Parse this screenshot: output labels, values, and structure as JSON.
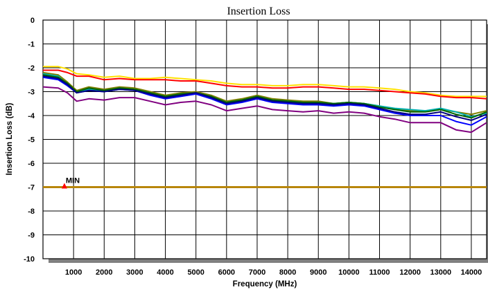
{
  "chart_data": {
    "type": "line",
    "title": "Insertion Loss",
    "xlabel": "Frequency (MHz)",
    "ylabel": "Insertion Loss (dB)",
    "xlim": [
      0,
      14500
    ],
    "ylim": [
      -10,
      0
    ],
    "x_ticks": [
      1000,
      2000,
      3000,
      4000,
      5000,
      6000,
      7000,
      8000,
      9000,
      10000,
      11000,
      12000,
      13000,
      14000
    ],
    "y_ticks": [
      0,
      -1,
      -2,
      -3,
      -4,
      -5,
      -6,
      -7,
      -8,
      -9,
      -10
    ],
    "grid": true,
    "legend": "none",
    "limit_line": {
      "y": -7,
      "color": "#b8860b"
    },
    "marker": {
      "label": "MIN",
      "x": 700,
      "y": -7,
      "color": "#ff0000"
    },
    "series": [
      {
        "color": "#ffe000",
        "x": [
          0,
          500,
          800,
          1100,
          1500,
          2000,
          2500,
          3000,
          3500,
          4000,
          4500,
          5000,
          5500,
          6000,
          6500,
          7000,
          7500,
          8000,
          8500,
          9000,
          9500,
          10000,
          10500,
          11000,
          11500,
          12000,
          12500,
          13000,
          13500,
          14000,
          14500
        ],
        "y": [
          -1.95,
          -1.95,
          -2.05,
          -2.25,
          -2.3,
          -2.4,
          -2.35,
          -2.45,
          -2.45,
          -2.4,
          -2.45,
          -2.5,
          -2.55,
          -2.65,
          -2.7,
          -2.7,
          -2.75,
          -2.75,
          -2.7,
          -2.7,
          -2.75,
          -2.8,
          -2.8,
          -2.85,
          -2.9,
          -3.0,
          -3.05,
          -3.15,
          -3.2,
          -3.2,
          -3.2
        ]
      },
      {
        "color": "#ff0000",
        "x": [
          0,
          500,
          800,
          1100,
          1500,
          2000,
          2500,
          3000,
          3500,
          4000,
          4500,
          5000,
          5500,
          6000,
          6500,
          7000,
          7500,
          8000,
          8500,
          9000,
          9500,
          10000,
          10500,
          11000,
          11500,
          12000,
          12500,
          13000,
          13500,
          14000,
          14500
        ],
        "y": [
          -2.1,
          -2.1,
          -2.2,
          -2.35,
          -2.35,
          -2.5,
          -2.45,
          -2.5,
          -2.5,
          -2.5,
          -2.55,
          -2.55,
          -2.65,
          -2.75,
          -2.8,
          -2.8,
          -2.85,
          -2.85,
          -2.8,
          -2.8,
          -2.85,
          -2.9,
          -2.9,
          -2.95,
          -3.0,
          -3.05,
          -3.1,
          -3.2,
          -3.25,
          -3.25,
          -3.3
        ]
      },
      {
        "color": "#808000",
        "x": [
          0,
          500,
          800,
          1100,
          1500,
          2000,
          2500,
          3000,
          3500,
          4000,
          4500,
          5000,
          5500,
          6000,
          6500,
          7000,
          7500,
          8000,
          8500,
          9000,
          9500,
          10000,
          10500,
          11000,
          11500,
          12000,
          12500,
          13000,
          13500,
          14000,
          14500
        ],
        "y": [
          -2.2,
          -2.3,
          -2.6,
          -2.95,
          -2.8,
          -2.9,
          -2.8,
          -2.85,
          -3.0,
          -3.15,
          -3.05,
          -3.0,
          -3.15,
          -3.4,
          -3.3,
          -3.15,
          -3.3,
          -3.35,
          -3.4,
          -3.4,
          -3.5,
          -3.45,
          -3.5,
          -3.6,
          -3.75,
          -3.8,
          -3.8,
          -3.75,
          -3.85,
          -3.95,
          -3.8
        ]
      },
      {
        "color": "#00b0b0",
        "x": [
          0,
          500,
          800,
          1100,
          1500,
          2000,
          2500,
          3000,
          3500,
          4000,
          4500,
          5000,
          5500,
          6000,
          6500,
          7000,
          7500,
          8000,
          8500,
          9000,
          9500,
          10000,
          10500,
          11000,
          11500,
          12000,
          12500,
          13000,
          13500,
          14000,
          14500
        ],
        "y": [
          -2.25,
          -2.35,
          -2.7,
          -3.0,
          -2.9,
          -2.95,
          -2.85,
          -2.9,
          -3.05,
          -3.2,
          -3.1,
          -3.05,
          -3.2,
          -3.45,
          -3.35,
          -3.2,
          -3.35,
          -3.4,
          -3.45,
          -3.45,
          -3.5,
          -3.45,
          -3.5,
          -3.6,
          -3.7,
          -3.75,
          -3.8,
          -3.7,
          -3.85,
          -4.05,
          -3.9
        ]
      },
      {
        "color": "#0000ff",
        "x": [
          0,
          500,
          800,
          1100,
          1500,
          2000,
          2500,
          3000,
          3500,
          4000,
          4500,
          5000,
          5500,
          6000,
          6500,
          7000,
          7500,
          8000,
          8500,
          9000,
          9500,
          10000,
          10500,
          11000,
          11500,
          12000,
          12500,
          13000,
          13500,
          14000,
          14500
        ],
        "y": [
          -2.4,
          -2.5,
          -2.75,
          -3.05,
          -2.95,
          -3.0,
          -2.9,
          -2.95,
          -3.15,
          -3.3,
          -3.2,
          -3.1,
          -3.3,
          -3.55,
          -3.45,
          -3.3,
          -3.45,
          -3.5,
          -3.55,
          -3.55,
          -3.6,
          -3.55,
          -3.6,
          -3.75,
          -3.9,
          -4.0,
          -4.0,
          -4.0,
          -4.25,
          -4.4,
          -4.05
        ]
      },
      {
        "color": "#800080",
        "x": [
          0,
          500,
          800,
          1100,
          1500,
          2000,
          2500,
          3000,
          3500,
          4000,
          4500,
          5000,
          5500,
          6000,
          6500,
          7000,
          7500,
          8000,
          8500,
          9000,
          9500,
          10000,
          10500,
          11000,
          11500,
          12000,
          12500,
          13000,
          13500,
          14000,
          14500
        ],
        "y": [
          -2.8,
          -2.85,
          -3.05,
          -3.4,
          -3.3,
          -3.35,
          -3.25,
          -3.25,
          -3.4,
          -3.55,
          -3.45,
          -3.4,
          -3.55,
          -3.8,
          -3.7,
          -3.6,
          -3.75,
          -3.8,
          -3.85,
          -3.8,
          -3.9,
          -3.85,
          -3.9,
          -4.05,
          -4.15,
          -4.3,
          -4.3,
          -4.3,
          -4.6,
          -4.7,
          -4.3
        ]
      },
      {
        "color": "#006400",
        "x": [
          0,
          500,
          800,
          1100,
          1500,
          2000,
          2500,
          3000,
          3500,
          4000,
          4500,
          5000,
          5500,
          6000,
          6500,
          7000,
          7500,
          8000,
          8500,
          9000,
          9500,
          10000,
          10500,
          11000,
          11500,
          12000,
          12500,
          13000,
          13500,
          14000,
          14500
        ],
        "y": [
          -2.3,
          -2.4,
          -2.65,
          -3.0,
          -2.85,
          -2.95,
          -2.85,
          -2.9,
          -3.05,
          -3.2,
          -3.1,
          -3.05,
          -3.2,
          -3.45,
          -3.35,
          -3.2,
          -3.35,
          -3.4,
          -3.45,
          -3.45,
          -3.5,
          -3.45,
          -3.5,
          -3.65,
          -3.75,
          -3.85,
          -3.85,
          -3.75,
          -3.95,
          -4.1,
          -3.85
        ]
      },
      {
        "color": "#000080",
        "x": [
          0,
          500,
          800,
          1100,
          1500,
          2000,
          2500,
          3000,
          3500,
          4000,
          4500,
          5000,
          5500,
          6000,
          6500,
          7000,
          7500,
          8000,
          8500,
          9000,
          9500,
          10000,
          10500,
          11000,
          11500,
          12000,
          12500,
          13000,
          13500,
          14000,
          14500
        ],
        "y": [
          -2.35,
          -2.45,
          -2.7,
          -3.05,
          -2.95,
          -3.0,
          -2.9,
          -2.95,
          -3.1,
          -3.25,
          -3.15,
          -3.05,
          -3.25,
          -3.5,
          -3.4,
          -3.25,
          -3.4,
          -3.45,
          -3.5,
          -3.5,
          -3.55,
          -3.5,
          -3.55,
          -3.7,
          -3.85,
          -3.95,
          -3.95,
          -3.85,
          -4.05,
          -4.2,
          -3.95
        ]
      }
    ]
  }
}
